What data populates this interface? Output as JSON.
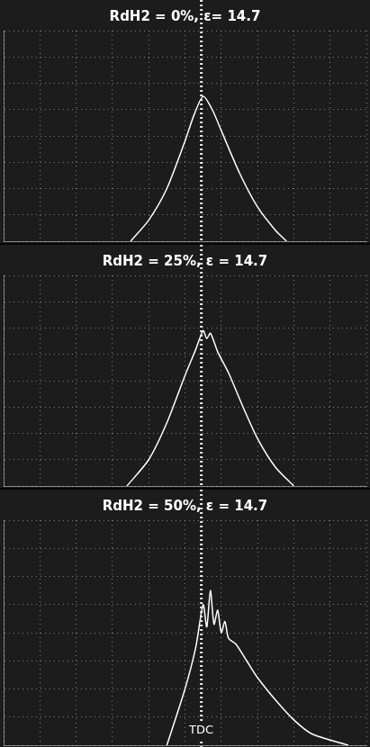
{
  "chart_data": [
    {
      "type": "line",
      "title": "RdH2 = 0%, ε= 14.7",
      "x": [
        3.5,
        4.0,
        4.5,
        5.0,
        5.25,
        5.5,
        5.75,
        6.0,
        6.5,
        7.0,
        7.5,
        7.8
      ],
      "values": [
        0,
        0.8,
        2.0,
        3.8,
        4.8,
        5.5,
        5.0,
        4.2,
        2.6,
        1.3,
        0.4,
        0
      ],
      "color": "#ffffff",
      "xlim": [
        0,
        10
      ],
      "xticks": [
        0,
        1,
        2,
        3,
        4,
        5,
        6,
        7,
        8,
        9,
        10
      ],
      "ylim": [
        0,
        8
      ],
      "yticks": [
        0,
        1,
        2,
        3,
        4,
        5,
        6,
        7,
        8
      ],
      "grid": true,
      "tick_labels": false,
      "annotations": [
        {
          "x": 5.45,
          "line_style": "dotted"
        }
      ]
    },
    {
      "type": "line",
      "title": "RdH2 = 25%, ε = 14.7",
      "x": [
        3.4,
        4.0,
        4.5,
        5.0,
        5.3,
        5.5,
        5.6,
        5.7,
        5.9,
        6.2,
        6.6,
        7.0,
        7.5,
        8.0
      ],
      "values": [
        0,
        1.0,
        2.4,
        4.2,
        5.2,
        5.9,
        5.6,
        5.8,
        5.1,
        4.3,
        3.0,
        1.8,
        0.7,
        0
      ],
      "color": "#ffffff",
      "xlim": [
        0,
        10
      ],
      "xticks": [
        0,
        1,
        2,
        3,
        4,
        5,
        6,
        7,
        8,
        9,
        10
      ],
      "ylim": [
        0,
        8
      ],
      "yticks": [
        0,
        1,
        2,
        3,
        4,
        5,
        6,
        7,
        8
      ],
      "grid": true,
      "tick_labels": false,
      "annotations": [
        {
          "x": 5.45,
          "line_style": "dotted"
        }
      ]
    },
    {
      "type": "line",
      "title": "RdH2 = 50%, ε = 14.7",
      "x": [
        4.5,
        5.0,
        5.3,
        5.5,
        5.6,
        5.7,
        5.8,
        5.9,
        6.0,
        6.1,
        6.2,
        6.4,
        6.7,
        7.0,
        7.5,
        8.0,
        8.5,
        9.5
      ],
      "values": [
        0,
        2.0,
        3.5,
        5.0,
        4.2,
        5.5,
        4.3,
        4.8,
        4.0,
        4.4,
        3.8,
        3.6,
        3.0,
        2.4,
        1.6,
        0.9,
        0.4,
        0
      ],
      "color": "#ffffff",
      "xlim": [
        0,
        10
      ],
      "xticks": [
        0,
        1,
        2,
        3,
        4,
        5,
        6,
        7,
        8,
        9,
        10
      ],
      "ylim": [
        0,
        8
      ],
      "yticks": [
        0,
        1,
        2,
        3,
        4,
        5,
        6,
        7,
        8
      ],
      "grid": true,
      "tick_labels": false,
      "annotations": [
        {
          "x": 5.45,
          "line_style": "dotted",
          "text": "TDC"
        }
      ]
    }
  ]
}
